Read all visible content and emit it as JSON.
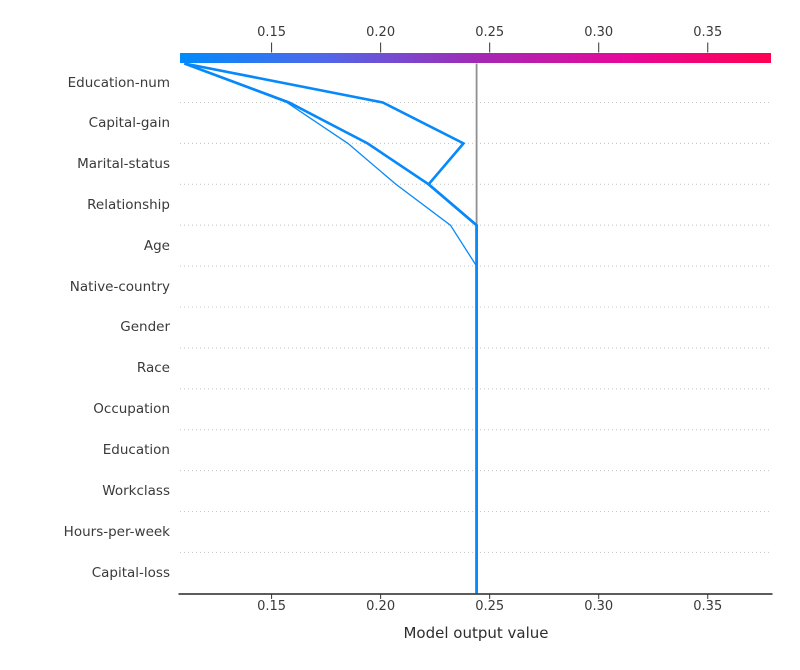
{
  "figure": {
    "xlabel": "Model output value"
  },
  "chart_data": {
    "type": "line",
    "chart_kind": "shap-decision-plot",
    "title": "",
    "xlabel": "Model output value",
    "ylabel": "",
    "xlim": [
      0.108,
      0.379
    ],
    "x_ticks": [
      0.15,
      0.2,
      0.25,
      0.3,
      0.35
    ],
    "x_tick_labels": [
      "0.15",
      "0.20",
      "0.25",
      "0.30",
      "0.35"
    ],
    "base_value": 0.244,
    "grid": "dotted-row-separators",
    "legend": "none",
    "features_top_to_bottom": [
      "Education-num",
      "Capital-gain",
      "Marital-status",
      "Relationship",
      "Age",
      "Native-country",
      "Gender",
      "Race",
      "Occupation",
      "Education",
      "Workclass",
      "Hours-per-week",
      "Capital-loss"
    ],
    "colorbar": {
      "orientation": "horizontal",
      "position": "top",
      "tick_labels": [
        "0.15",
        "0.20",
        "0.25",
        "0.30",
        "0.35"
      ],
      "tick_values": [
        0.15,
        0.2,
        0.25,
        0.3,
        0.35
      ],
      "gradient_stops": [
        {
          "pos": 0.0,
          "color": "#008bfb"
        },
        {
          "pos": 0.24,
          "color": "#4f68ea"
        },
        {
          "pos": 0.5,
          "color": "#a12ab4"
        },
        {
          "pos": 0.75,
          "color": "#e5089a"
        },
        {
          "pos": 1.0,
          "color": "#ff0051"
        }
      ]
    },
    "series": [
      {
        "name": "observation-1",
        "color": "#0789fa",
        "stroke_width": 2.6,
        "final_output": 0.11,
        "values_top_to_bottom": [
          0.11,
          0.201,
          0.238,
          0.222,
          0.244,
          0.244,
          0.244,
          0.244,
          0.244,
          0.244,
          0.244,
          0.244,
          0.244,
          0.244
        ]
      },
      {
        "name": "observation-2",
        "color": "#0789fa",
        "stroke_width": 2.6,
        "final_output": 0.11,
        "values_top_to_bottom": [
          0.11,
          0.158,
          0.194,
          0.222,
          0.244,
          0.244,
          0.244,
          0.244,
          0.244,
          0.244,
          0.244,
          0.244,
          0.244,
          0.244
        ]
      },
      {
        "name": "observation-3",
        "color": "#0789fa",
        "stroke_width": 1.3,
        "final_output": 0.11,
        "values_top_to_bottom": [
          0.11,
          0.157,
          0.185,
          0.207,
          0.232,
          0.244,
          0.244,
          0.244,
          0.244,
          0.244,
          0.244,
          0.244,
          0.244,
          0.244
        ]
      }
    ],
    "colors": {
      "base_value_line": "#909090",
      "row_separator": "#c9c9c9",
      "axis_spine": "#262626",
      "tick": "#333333",
      "text": "#3a3a3a"
    }
  }
}
